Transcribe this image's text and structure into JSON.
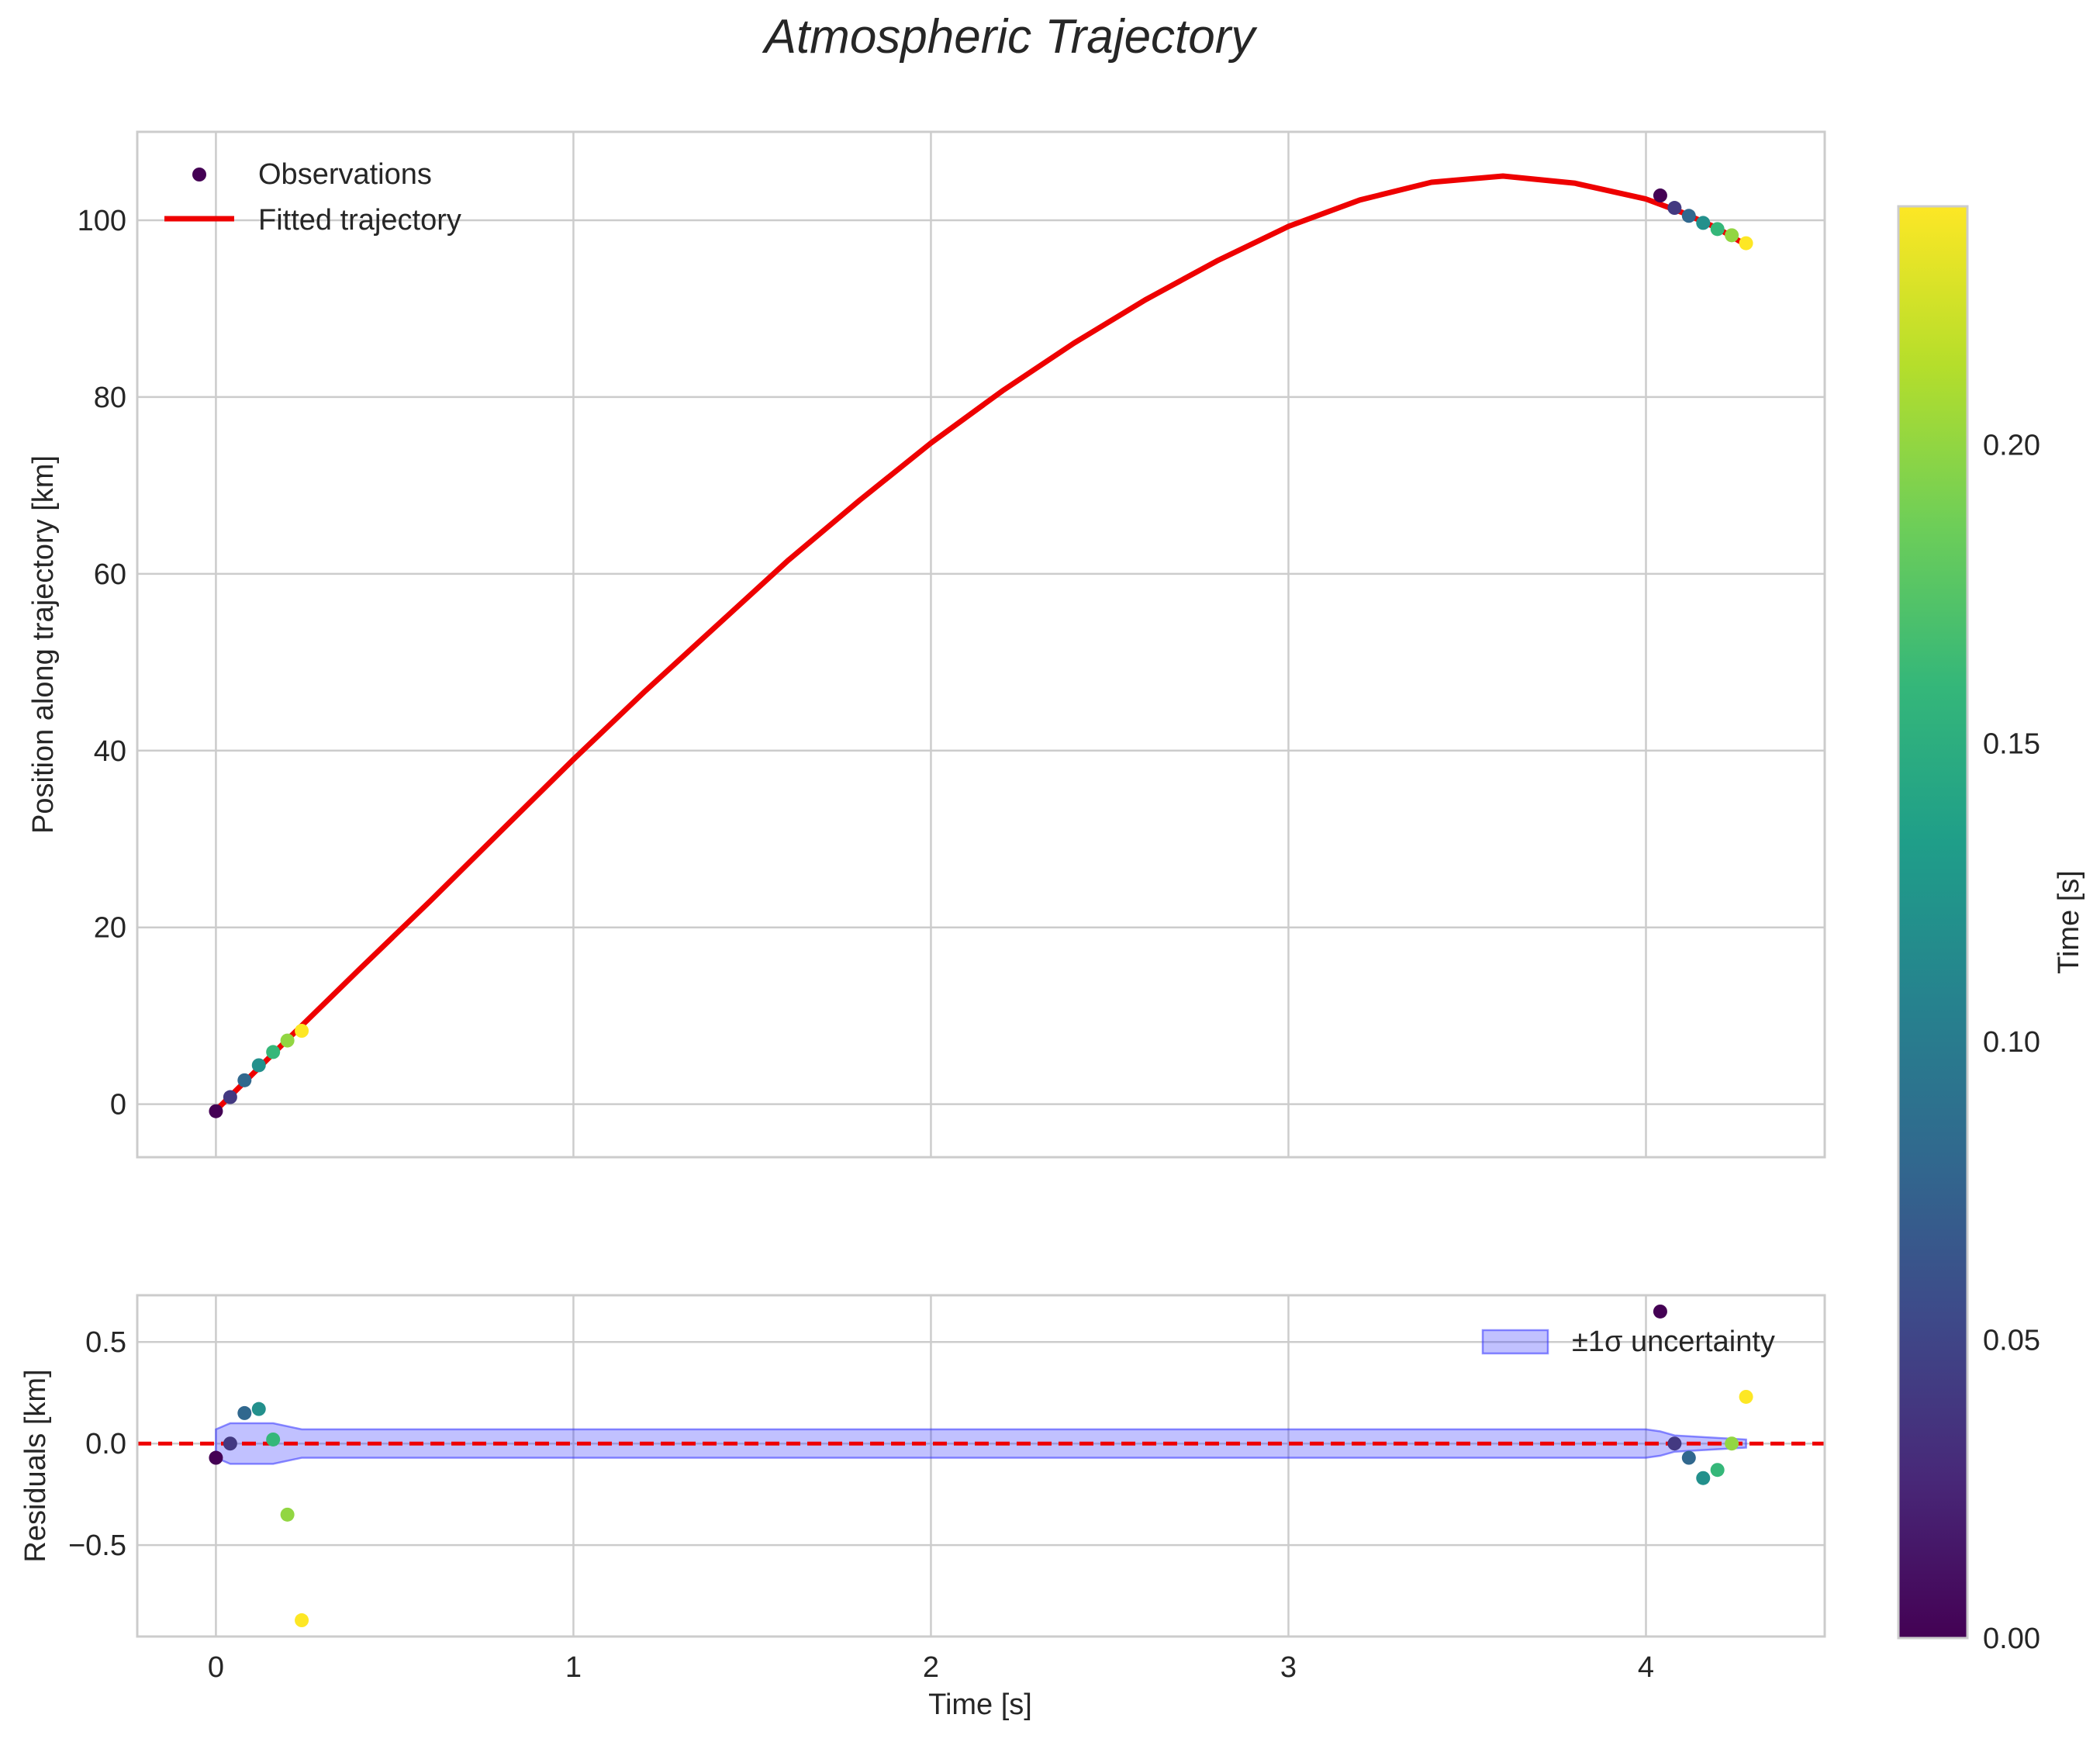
{
  "chart_data": {
    "type": "scatter",
    "title": "Atmospheric Trajectory",
    "xlabel": "Time [s]",
    "colormap": "viridis",
    "xlim": [
      -0.22,
      4.5
    ],
    "xticks": [
      0,
      1,
      2,
      3,
      4
    ],
    "panels": [
      {
        "id": "trajectory",
        "ylabel": "Position along trajectory [km]",
        "ylim": [
          -6,
          110
        ],
        "yticks": [
          0,
          20,
          40,
          60,
          80,
          100
        ],
        "legend": {
          "location": "upper-left",
          "entries": [
            "Observations",
            "Fitted trajectory"
          ]
        },
        "series": [
          {
            "name": "Observations",
            "kind": "scatter",
            "x": [
              0.0,
              0.04,
              0.08,
              0.12,
              0.16,
              0.2,
              0.24,
              4.04,
              4.08,
              4.12,
              4.16,
              4.2,
              4.24,
              4.28
            ],
            "y": [
              -0.8,
              0.8,
              2.7,
              4.4,
              5.9,
              7.2,
              8.3,
              102.8,
              101.4,
              100.5,
              99.7,
              99.0,
              98.3,
              97.4
            ],
            "color_value": [
              0.0,
              0.04,
              0.08,
              0.12,
              0.16,
              0.2,
              0.24,
              0.0,
              0.04,
              0.08,
              0.12,
              0.16,
              0.2,
              0.24
            ]
          },
          {
            "name": "Fitted trajectory",
            "kind": "line",
            "color": "#ee0000",
            "x": [
              0.0,
              0.2,
              0.4,
              0.6,
              0.8,
              1.0,
              1.2,
              1.4,
              1.6,
              1.8,
              2.0,
              2.2,
              2.4,
              2.6,
              2.8,
              3.0,
              3.2,
              3.4,
              3.6,
              3.8,
              4.0,
              4.1,
              4.2,
              4.28
            ],
            "y": [
              -0.7,
              7.3,
              15.2,
              23.0,
              31.0,
              39.0,
              46.7,
              54.1,
              61.5,
              68.3,
              74.8,
              80.7,
              86.1,
              91.0,
              95.4,
              99.3,
              102.3,
              104.3,
              105.0,
              104.2,
              102.4,
              100.9,
              99.1,
              97.2
            ]
          }
        ]
      },
      {
        "id": "residuals",
        "ylabel": "Residuals [km]",
        "ylim": [
          -0.95,
          0.73
        ],
        "yticks": [
          0.5,
          0.0,
          -0.5
        ],
        "ytick_labels": [
          "0.5",
          "0.0",
          "−0.5"
        ],
        "legend": {
          "location": "upper-right",
          "entries": [
            "±1σ uncertainty"
          ]
        },
        "zero_line_color": "#ee0000",
        "band_color": "#3333ff",
        "series": [
          {
            "name": "Residuals",
            "kind": "scatter",
            "x": [
              0.0,
              0.04,
              0.08,
              0.12,
              0.16,
              0.2,
              0.24,
              4.04,
              4.08,
              4.12,
              4.16,
              4.2,
              4.24,
              4.28
            ],
            "y": [
              -0.07,
              0.0,
              0.15,
              0.17,
              0.02,
              -0.35,
              -0.87,
              0.65,
              0.0,
              -0.07,
              -0.17,
              -0.13,
              0.0,
              0.23
            ],
            "color_value": [
              0.0,
              0.04,
              0.08,
              0.12,
              0.16,
              0.2,
              0.24,
              0.0,
              0.04,
              0.08,
              0.12,
              0.16,
              0.2,
              0.24
            ]
          },
          {
            "name": "±1σ uncertainty",
            "kind": "band",
            "x": [
              0.0,
              0.04,
              0.16,
              0.24,
              4.0,
              4.04,
              4.08,
              4.28
            ],
            "upper": [
              0.07,
              0.1,
              0.1,
              0.07,
              0.07,
              0.06,
              0.04,
              0.02
            ],
            "lower": [
              -0.07,
              -0.1,
              -0.1,
              -0.07,
              -0.07,
              -0.06,
              -0.04,
              -0.02
            ]
          }
        ]
      }
    ],
    "colorbar": {
      "label": "Time [s]",
      "range": [
        0.0,
        0.24
      ],
      "ticks": [
        0.0,
        0.05,
        0.1,
        0.15,
        0.2
      ],
      "tick_labels": [
        "0.00",
        "0.05",
        "0.10",
        "0.15",
        "0.20"
      ]
    },
    "viridis_stops": [
      "#440154",
      "#482878",
      "#3e4989",
      "#31688e",
      "#26828e",
      "#1f9e89",
      "#35b779",
      "#6ece58",
      "#b5de2b",
      "#fde725"
    ]
  }
}
